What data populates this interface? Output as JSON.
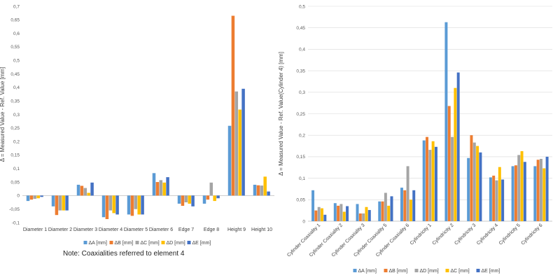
{
  "colors": [
    "#5b9bd5",
    "#ed7d31",
    "#a5a5a5",
    "#ffc000",
    "#4472c4"
  ],
  "chart_data": [
    {
      "type": "bar",
      "ylabel": "Δ = Measured Value - Ref. Value [mm]",
      "ylim": [
        -0.1,
        0.7
      ],
      "ytick_step": 0.05,
      "ytick_labels": [
        "-0,1",
        "-0,05",
        "0",
        "0,05",
        "0,1",
        "0,15",
        "0,2",
        "0,25",
        "0,3",
        "0,35",
        "0,4",
        "0,45",
        "0,5",
        "0,55",
        "0,6",
        "0,65",
        "0,7"
      ],
      "grid": false,
      "legend_position": "bottom",
      "categories": [
        "Diameter 1",
        "Diameter 2",
        "Diameter 3",
        "Diameter 4",
        "Diameter 5",
        "Diameter 6",
        "Edge 7",
        "Edge 8",
        "Height 9",
        "Height 10"
      ],
      "series": [
        {
          "name": "ΔA [mm]",
          "values": [
            -0.02,
            -0.04,
            0.04,
            -0.08,
            -0.07,
            0.083,
            -0.03,
            -0.03,
            0.258,
            0.04
          ]
        },
        {
          "name": "ΔB [mm]",
          "values": [
            -0.015,
            -0.072,
            0.036,
            -0.087,
            -0.075,
            0.05,
            -0.038,
            -0.015,
            0.665,
            0.038
          ]
        },
        {
          "name": "ΔC [mm]",
          "values": [
            -0.012,
            -0.055,
            0.028,
            -0.055,
            -0.05,
            0.057,
            -0.025,
            0.048,
            0.385,
            0.037
          ]
        },
        {
          "name": "ΔD [mm]",
          "values": [
            -0.01,
            -0.055,
            0.01,
            -0.065,
            -0.07,
            0.048,
            -0.03,
            -0.02,
            0.318,
            0.07
          ]
        },
        {
          "name": "ΔE [mm]",
          "values": [
            -0.005,
            -0.055,
            0.048,
            -0.07,
            -0.07,
            0.068,
            -0.04,
            -0.01,
            0.395,
            0.015
          ]
        }
      ]
    },
    {
      "type": "bar",
      "ylabel": "Δ = Measured Value - Ref. Value(Cylinder 4) [mm]",
      "ylim": [
        0,
        0.5
      ],
      "ytick_step": 0.05,
      "ytick_labels": [
        "0",
        "0,05",
        "0,1",
        "0,15",
        "0,2",
        "0,25",
        "0,3",
        "0,35",
        "0,4",
        "0,45",
        "0,5"
      ],
      "grid": true,
      "legend_position": "bottom",
      "categories": [
        "Cylinder Coaxiality 1",
        "Cylinder Coaxiality 2",
        "Cylinder Coaxiality 3",
        "Cylinder Coaxiality 5",
        "Cylinder Coaxiality 6",
        "Cylindricity 1",
        "Cylindricity 2",
        "Cylindricity 3",
        "Cylindricity 4",
        "Cylindricity 5",
        "Cylindricity 6"
      ],
      "series": [
        {
          "name": "ΔA [mm]",
          "values": [
            0.072,
            0.042,
            0.04,
            0.046,
            0.078,
            0.188,
            0.463,
            0.147,
            0.102,
            0.128,
            0.128
          ]
        },
        {
          "name": "ΔB [mm]",
          "values": [
            0.025,
            0.036,
            0.018,
            0.046,
            0.072,
            0.196,
            0.268,
            0.2,
            0.106,
            0.13,
            0.143
          ]
        },
        {
          "name": "ΔD [mm]",
          "values": [
            0.033,
            0.04,
            0.018,
            0.066,
            0.128,
            0.166,
            0.196,
            0.183,
            0.095,
            0.154,
            0.145
          ]
        },
        {
          "name": "ΔC [mm]",
          "values": [
            0.03,
            0.022,
            0.033,
            0.036,
            0.05,
            0.186,
            0.31,
            0.175,
            0.126,
            0.163,
            0.123
          ]
        },
        {
          "name": "ΔE [mm]",
          "values": [
            0.015,
            0.035,
            0.026,
            0.058,
            0.072,
            0.173,
            0.346,
            0.16,
            0.097,
            0.138,
            0.15
          ]
        }
      ]
    }
  ],
  "note": "Note: Coaxialities referred to element 4"
}
